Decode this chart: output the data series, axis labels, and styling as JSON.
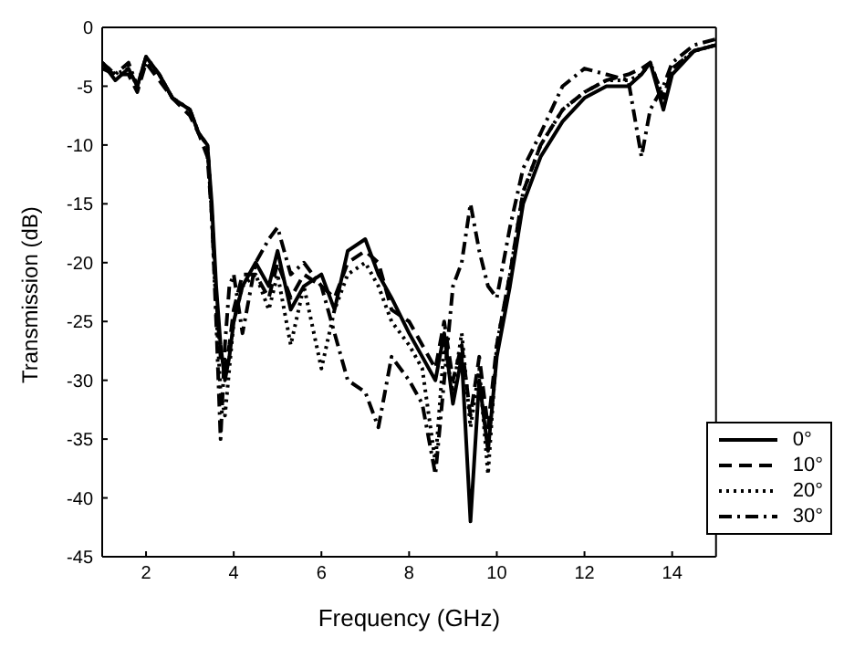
{
  "chart_data": {
    "type": "line",
    "xlabel": "Frequency (GHz)",
    "ylabel": "Transmission (dB)",
    "x": [
      1.0,
      1.3,
      1.6,
      1.8,
      2.0,
      2.3,
      2.6,
      3.0,
      3.2,
      3.4,
      3.5,
      3.6,
      3.7,
      3.8,
      3.9,
      4.0,
      4.2,
      4.5,
      4.8,
      5.0,
      5.3,
      5.6,
      6.0,
      6.3,
      6.6,
      7.0,
      7.3,
      7.6,
      8.0,
      8.3,
      8.6,
      8.8,
      9.0,
      9.2,
      9.4,
      9.6,
      9.8,
      10.0,
      10.3,
      10.6,
      11.0,
      11.5,
      12.0,
      12.5,
      13.0,
      13.3,
      13.5,
      13.8,
      14.0,
      14.5,
      15.0
    ],
    "xlim": [
      1,
      15
    ],
    "xticks": [
      2,
      4,
      6,
      8,
      10,
      12,
      14
    ],
    "ylim": [
      -45,
      0
    ],
    "yticks": [
      -45,
      -40,
      -35,
      -30,
      -25,
      -20,
      -15,
      -10,
      -5,
      0
    ],
    "legend": "bottom right",
    "marker": "none",
    "series": [
      {
        "name": "0°",
        "color": "#000000",
        "line_style": "solid",
        "values": [
          -3,
          -4.5,
          -3.5,
          -5,
          -2.5,
          -4,
          -6,
          -7,
          -9,
          -10,
          -15,
          -22,
          -27,
          -30,
          -28,
          -25,
          -22,
          -20,
          -22,
          -19,
          -24,
          -22,
          -21,
          -24,
          -19,
          -18,
          -21,
          -23,
          -26,
          -28,
          -30,
          -26,
          -32,
          -28,
          -42,
          -30,
          -36,
          -28,
          -22,
          -15,
          -11,
          -8,
          -6,
          -5,
          -5,
          -4,
          -3,
          -7,
          -4,
          -2,
          -1.5
        ]
      },
      {
        "name": "10°",
        "color": "#000000",
        "line_style": "dashed",
        "values": [
          -3.5,
          -4,
          -4,
          -5.5,
          -3,
          -4.5,
          -6,
          -7.5,
          -9,
          -11,
          -16,
          -23,
          -28,
          -29,
          -27,
          -24,
          -21,
          -21,
          -23,
          -20,
          -23,
          -21,
          -22,
          -23,
          -20,
          -19,
          -20,
          -24,
          -25,
          -27,
          -29,
          -25,
          -30,
          -27,
          -33,
          -28,
          -34,
          -27,
          -21,
          -14,
          -10,
          -7,
          -5.5,
          -4.5,
          -4,
          -3.5,
          -3,
          -6,
          -3.5,
          -2,
          -1.5
        ]
      },
      {
        "name": "20°",
        "color": "#000000",
        "line_style": "dotted",
        "values": [
          -3,
          -4,
          -3.5,
          -5,
          -3,
          -4,
          -6,
          -7,
          -9,
          -10,
          -16,
          -24,
          -31,
          -33,
          -29,
          -25,
          -22,
          -21,
          -24,
          -21,
          -27,
          -22,
          -29,
          -24,
          -21,
          -20,
          -22,
          -25,
          -27,
          -29,
          -37,
          -27,
          -31,
          -26,
          -34,
          -29,
          -38,
          -27,
          -21,
          -14,
          -10,
          -7,
          -5.5,
          -4.5,
          -4.5,
          -4,
          -3,
          -6,
          -3.5,
          -2,
          -1.5
        ]
      },
      {
        "name": "30°",
        "color": "#000000",
        "line_style": "dashdot",
        "values": [
          -3,
          -4,
          -3,
          -5,
          -2.5,
          -4,
          -6,
          -7,
          -9,
          -10,
          -16,
          -25,
          -35,
          -27,
          -22,
          -21,
          -26,
          -20,
          -18,
          -17,
          -21,
          -20,
          -22,
          -26,
          -30,
          -31,
          -34,
          -28,
          -30,
          -32,
          -38,
          -30,
          -22,
          -20,
          -15,
          -19,
          -22,
          -23,
          -17,
          -12,
          -9,
          -5,
          -3.5,
          -4,
          -4.5,
          -11,
          -7,
          -5,
          -3,
          -1.5,
          -1
        ]
      }
    ]
  }
}
